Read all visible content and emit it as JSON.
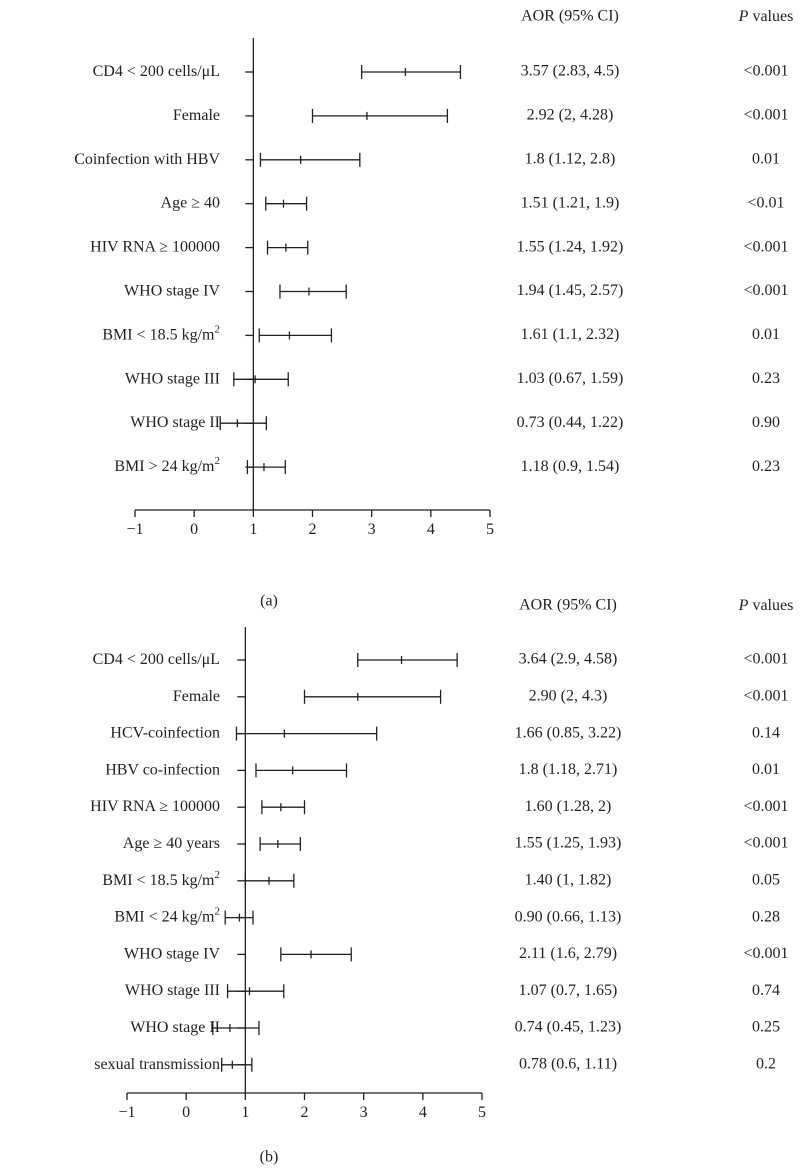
{
  "chart_data": [
    {
      "type": "forest",
      "panel_label": "(a)",
      "columns": {
        "estimate": "AOR (95% CI)",
        "p_italic": "P",
        "p_rest": " values"
      },
      "xlim": [
        -1,
        5
      ],
      "xticks": [
        "−1",
        "0",
        "1",
        "2",
        "3",
        "4",
        "5"
      ],
      "reference_line": 1,
      "rows": [
        {
          "label": "CD4 < 200 cells/μL",
          "aor": 3.57,
          "lo": 2.83,
          "hi": 4.5,
          "ci_text": "3.57 (2.83, 4.5)",
          "p": "<0.001"
        },
        {
          "label": "Female",
          "aor": 2.92,
          "lo": 2,
          "hi": 4.28,
          "ci_text": "2.92 (2, 4.28)",
          "p": "<0.001"
        },
        {
          "label": "Coinfection with HBV",
          "aor": 1.8,
          "lo": 1.12,
          "hi": 2.8,
          "ci_text": "1.8 (1.12, 2.8)",
          "p": "0.01"
        },
        {
          "label": "Age ≥ 40",
          "aor": 1.51,
          "lo": 1.21,
          "hi": 1.9,
          "ci_text": "1.51 (1.21, 1.9)",
          "p": "<0.01"
        },
        {
          "label": "HIV RNA ≥ 100000",
          "aor": 1.55,
          "lo": 1.24,
          "hi": 1.92,
          "ci_text": "1.55 (1.24, 1.92)",
          "p": "<0.001"
        },
        {
          "label": "WHO stage IV",
          "aor": 1.94,
          "lo": 1.45,
          "hi": 2.57,
          "ci_text": "1.94 (1.45, 2.57)",
          "p": "<0.001"
        },
        {
          "label": "BMI < 18.5 kg/m",
          "sup": "2",
          "aor": 1.61,
          "lo": 1.1,
          "hi": 2.32,
          "ci_text": "1.61 (1.1, 2.32)",
          "p": "0.01"
        },
        {
          "label": "WHO stage III",
          "aor": 1.03,
          "lo": 0.67,
          "hi": 1.59,
          "ci_text": "1.03 (0.67, 1.59)",
          "p": "0.23"
        },
        {
          "label": "WHO stage II",
          "aor": 0.73,
          "lo": 0.44,
          "hi": 1.22,
          "ci_text": "0.73 (0.44, 1.22)",
          "p": "0.90"
        },
        {
          "label": "BMI > 24 kg/m",
          "sup": "2",
          "aor": 1.18,
          "lo": 0.9,
          "hi": 1.54,
          "ci_text": "1.18 (0.9, 1.54)",
          "p": "0.23"
        }
      ]
    },
    {
      "type": "forest",
      "panel_label": "(b)",
      "columns": {
        "estimate": "AOR (95% CI)",
        "p_italic": "P",
        "p_rest": " values"
      },
      "xlim": [
        -1,
        5
      ],
      "xticks": [
        "−1",
        "0",
        "1",
        "2",
        "3",
        "4",
        "5"
      ],
      "reference_line": 1,
      "rows": [
        {
          "label": "CD4 < 200 cells/μL",
          "aor": 3.64,
          "lo": 2.9,
          "hi": 4.58,
          "ci_text": "3.64 (2.9, 4.58)",
          "p": "<0.001"
        },
        {
          "label": "Female",
          "aor": 2.9,
          "lo": 2,
          "hi": 4.3,
          "ci_text": "2.90 (2, 4.3)",
          "p": "<0.001"
        },
        {
          "label": "HCV-coinfection",
          "aor": 1.66,
          "lo": 0.85,
          "hi": 3.22,
          "ci_text": "1.66 (0.85, 3.22)",
          "p": "0.14"
        },
        {
          "label": "HBV co-infection",
          "aor": 1.8,
          "lo": 1.18,
          "hi": 2.71,
          "ci_text": "1.8 (1.18, 2.71)",
          "p": "0.01"
        },
        {
          "label": "HIV RNA ≥ 100000",
          "aor": 1.6,
          "lo": 1.28,
          "hi": 2,
          "ci_text": "1.60 (1.28, 2)",
          "p": "<0.001"
        },
        {
          "label": "Age ≥ 40 years",
          "aor": 1.55,
          "lo": 1.25,
          "hi": 1.93,
          "ci_text": "1.55 (1.25, 1.93)",
          "p": "<0.001"
        },
        {
          "label": "BMI < 18.5 kg/m",
          "sup": "2",
          "aor": 1.4,
          "lo": 1,
          "hi": 1.82,
          "ci_text": "1.40 (1, 1.82)",
          "p": "0.05"
        },
        {
          "label": "BMI < 24 kg/m",
          "sup": "2",
          "aor": 0.9,
          "lo": 0.66,
          "hi": 1.13,
          "ci_text": "0.90 (0.66, 1.13)",
          "p": "0.28"
        },
        {
          "label": "WHO stage IV",
          "aor": 2.11,
          "lo": 1.6,
          "hi": 2.79,
          "ci_text": "2.11 (1.6, 2.79)",
          "p": "<0.001"
        },
        {
          "label": "WHO stage III",
          "aor": 1.07,
          "lo": 0.7,
          "hi": 1.65,
          "ci_text": "1.07 (0.7, 1.65)",
          "p": "0.74"
        },
        {
          "label": "WHO stage II",
          "aor": 0.74,
          "lo": 0.45,
          "hi": 1.23,
          "ci_text": "0.74 (0.45, 1.23)",
          "p": "0.25"
        },
        {
          "label": "sexual transmission",
          "aor": 0.78,
          "lo": 0.6,
          "hi": 1.11,
          "ci_text": "0.78 (0.6, 1.11)",
          "p": "0.2"
        }
      ]
    }
  ]
}
